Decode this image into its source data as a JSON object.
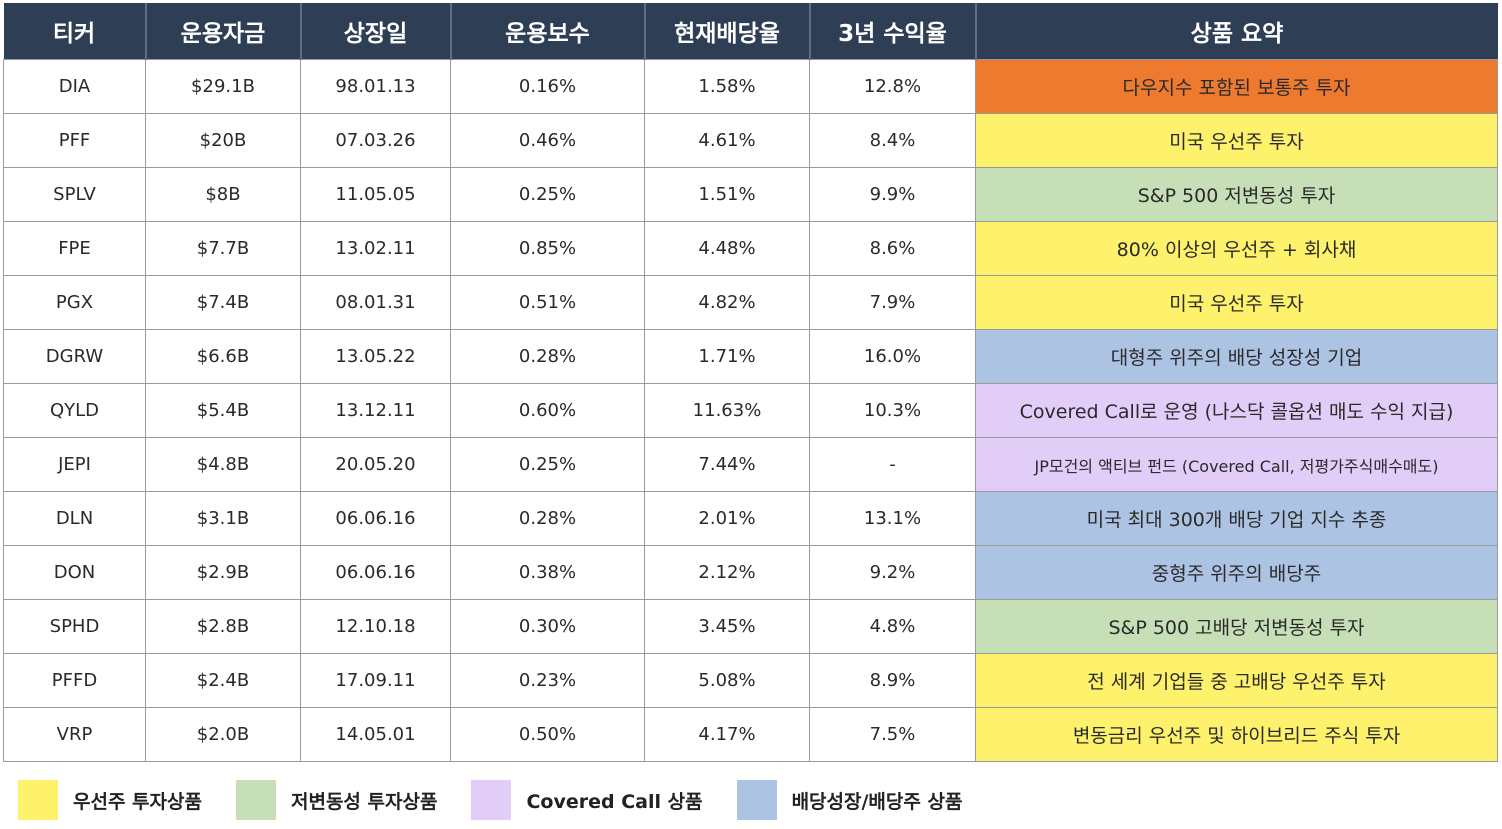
{
  "columns": [
    "티커",
    "운용자금",
    "상장일",
    "운용보수",
    "현재배당율",
    "3년 수익율",
    "상품 요약"
  ],
  "category_colors": {
    "dow": "#ee7a30",
    "preferred": "#fef16c",
    "low_vol": "#c7dfb6",
    "covered_call": "#e2ccf8",
    "dividend_growth": "#adc3e4"
  },
  "rows": [
    {
      "ticker": "DIA",
      "aum": "$29.1B",
      "listed": "98.01.13",
      "fee": "0.16%",
      "yield": "1.58%",
      "return3y": "12.8%",
      "summary": "다우지수 포함된 보통주 투자",
      "category": "dow"
    },
    {
      "ticker": "PFF",
      "aum": "$20B",
      "listed": "07.03.26",
      "fee": "0.46%",
      "yield": "4.61%",
      "return3y": "8.4%",
      "summary": "미국 우선주 투자",
      "category": "preferred"
    },
    {
      "ticker": "SPLV",
      "aum": "$8B",
      "listed": "11.05.05",
      "fee": "0.25%",
      "yield": "1.51%",
      "return3y": "9.9%",
      "summary": "S&P 500 저변동성 투자",
      "category": "low_vol"
    },
    {
      "ticker": "FPE",
      "aum": "$7.7B",
      "listed": "13.02.11",
      "fee": "0.85%",
      "yield": "4.48%",
      "return3y": "8.6%",
      "summary": "80% 이상의 우선주 + 회사채",
      "category": "preferred"
    },
    {
      "ticker": "PGX",
      "aum": "$7.4B",
      "listed": "08.01.31",
      "fee": "0.51%",
      "yield": "4.82%",
      "return3y": "7.9%",
      "summary": "미국 우선주 투자",
      "category": "preferred"
    },
    {
      "ticker": "DGRW",
      "aum": "$6.6B",
      "listed": "13.05.22",
      "fee": "0.28%",
      "yield": "1.71%",
      "return3y": "16.0%",
      "summary": "대형주 위주의 배당 성장성 기업",
      "category": "dividend_growth"
    },
    {
      "ticker": "QYLD",
      "aum": "$5.4B",
      "listed": "13.12.11",
      "fee": "0.60%",
      "yield": "11.63%",
      "return3y": "10.3%",
      "summary": "Covered Call로 운영 (나스닥 콜옵션 매도 수익 지급)",
      "category": "covered_call"
    },
    {
      "ticker": "JEPI",
      "aum": "$4.8B",
      "listed": "20.05.20",
      "fee": "0.25%",
      "yield": "7.44%",
      "return3y": "-",
      "summary": "JP모건의 액티브 펀드 (Covered Call, 저평가주식매수매도)",
      "category": "covered_call",
      "small": true
    },
    {
      "ticker": "DLN",
      "aum": "$3.1B",
      "listed": "06.06.16",
      "fee": "0.28%",
      "yield": "2.01%",
      "return3y": "13.1%",
      "summary": "미국 최대 300개 배당 기업 지수 추종",
      "category": "dividend_growth"
    },
    {
      "ticker": "DON",
      "aum": "$2.9B",
      "listed": "06.06.16",
      "fee": "0.38%",
      "yield": "2.12%",
      "return3y": "9.2%",
      "summary": "중형주 위주의 배당주",
      "category": "dividend_growth"
    },
    {
      "ticker": "SPHD",
      "aum": "$2.8B",
      "listed": "12.10.18",
      "fee": "0.30%",
      "yield": "3.45%",
      "return3y": "4.8%",
      "summary": "S&P 500 고배당 저변동성 투자",
      "category": "low_vol"
    },
    {
      "ticker": "PFFD",
      "aum": "$2.4B",
      "listed": "17.09.11",
      "fee": "0.23%",
      "yield": "5.08%",
      "return3y": "8.9%",
      "summary": "전 세계 기업들 중 고배당 우선주 투자",
      "category": "preferred"
    },
    {
      "ticker": "VRP",
      "aum": "$2.0B",
      "listed": "14.05.01",
      "fee": "0.50%",
      "yield": "4.17%",
      "return3y": "7.5%",
      "summary": "변동금리 우선주 및 하이브리드 주식 투자",
      "category": "preferred"
    }
  ],
  "legend": [
    {
      "label": "우선주 투자상품",
      "category": "preferred"
    },
    {
      "label": "저변동성 투자상품",
      "category": "low_vol"
    },
    {
      "label": "Covered Call 상품",
      "category": "covered_call"
    },
    {
      "label": "배당성장/배당주 상품",
      "category": "dividend_growth"
    }
  ]
}
